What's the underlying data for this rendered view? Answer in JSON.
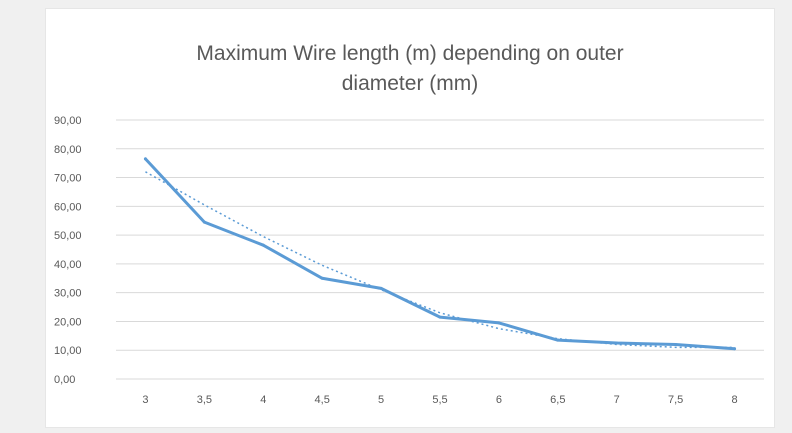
{
  "chart_data": {
    "type": "line",
    "title_line1": "Maximum Wire length (m) depending on outer",
    "title_line2": "diameter (mm)",
    "categories": [
      "3",
      "3,5",
      "4",
      "4,5",
      "5",
      "5,5",
      "6",
      "6,5",
      "7",
      "7,5",
      "8"
    ],
    "series": [
      {
        "values": [
          76.5,
          54.5,
          46.5,
          35,
          31.5,
          21.5,
          19.5,
          13.5,
          12.5,
          12,
          10.5
        ]
      }
    ],
    "trendline": {
      "type": "dotted",
      "values": [
        72,
        60.5,
        49.5,
        39.5,
        31,
        23,
        17.5,
        14,
        12,
        11,
        11
      ]
    },
    "yticks": [
      "0,00",
      "10,00",
      "20,00",
      "30,00",
      "40,00",
      "50,00",
      "60,00",
      "70,00",
      "80,00",
      "90,00"
    ],
    "ylim": [
      0,
      90
    ],
    "grid": true,
    "legend": "none",
    "colors": {
      "line": "#5b9bd5",
      "grid": "#d9d9d9",
      "text": "#595959"
    }
  }
}
